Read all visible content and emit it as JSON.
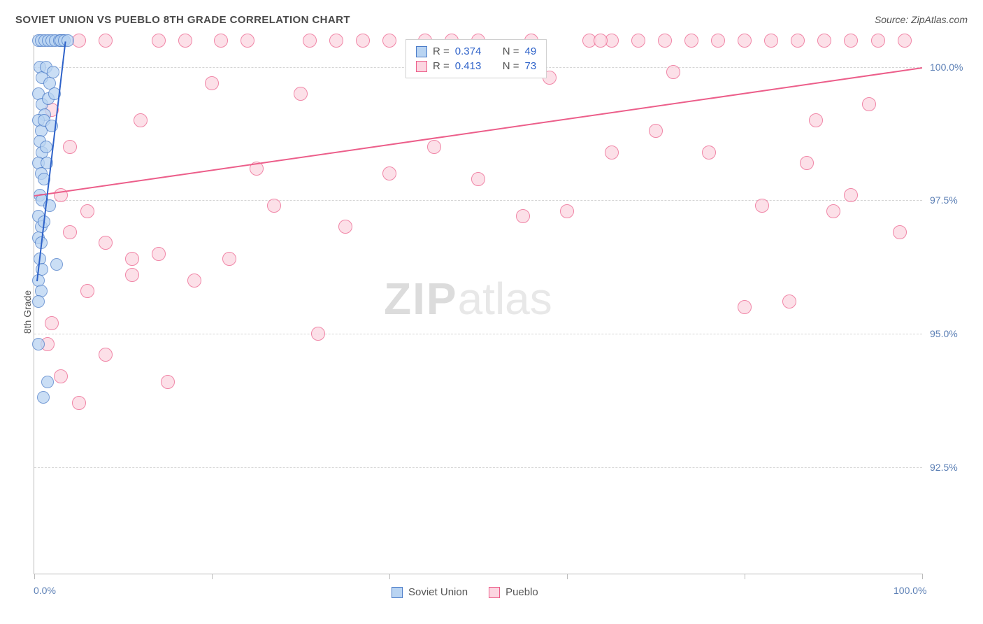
{
  "title": "SOVIET UNION VS PUEBLO 8TH GRADE CORRELATION CHART",
  "source": "Source: ZipAtlas.com",
  "y_axis_label": "8th Grade",
  "watermark_zip": "ZIP",
  "watermark_atlas": "atlas",
  "chart": {
    "type": "scatter",
    "xlim": [
      0,
      100
    ],
    "ylim": [
      90.5,
      100.6
    ],
    "x_ticks": [
      0,
      20,
      40,
      60,
      80,
      100
    ],
    "x_tick_labels": {
      "0": "0.0%",
      "100": "100.0%"
    },
    "y_gridlines": [
      92.5,
      95.0,
      97.5,
      100.0
    ],
    "y_tick_labels": [
      "92.5%",
      "95.0%",
      "97.5%",
      "100.0%"
    ],
    "grid_color": "#d5d5d5",
    "axis_color": "#bbbbbb",
    "background_color": "#ffffff",
    "label_color": "#5b7fb5"
  },
  "series": {
    "soviet": {
      "label": "Soviet Union",
      "fill": "#b9d4f2",
      "stroke": "#4a7bc8",
      "marker_radius": 9,
      "R": "0.374",
      "N": "49",
      "trend": {
        "x1": 0.3,
        "y1": 96.0,
        "x2": 3.5,
        "y2": 100.5,
        "color": "#2e62c9",
        "width": 2
      },
      "points": [
        [
          0.5,
          100.5
        ],
        [
          0.8,
          100.5
        ],
        [
          1.2,
          100.5
        ],
        [
          1.6,
          100.5
        ],
        [
          2.0,
          100.5
        ],
        [
          2.4,
          100.5
        ],
        [
          2.8,
          100.5
        ],
        [
          3.2,
          100.5
        ],
        [
          0.6,
          100.0
        ],
        [
          0.9,
          99.8
        ],
        [
          1.3,
          100.0
        ],
        [
          1.7,
          99.7
        ],
        [
          2.1,
          99.9
        ],
        [
          0.5,
          99.5
        ],
        [
          0.9,
          99.3
        ],
        [
          1.2,
          99.1
        ],
        [
          1.6,
          99.4
        ],
        [
          0.5,
          99.0
        ],
        [
          0.8,
          98.8
        ],
        [
          1.1,
          99.0
        ],
        [
          0.6,
          98.6
        ],
        [
          0.9,
          98.4
        ],
        [
          1.3,
          98.5
        ],
        [
          0.5,
          98.2
        ],
        [
          0.8,
          98.0
        ],
        [
          1.1,
          97.9
        ],
        [
          0.6,
          97.6
        ],
        [
          0.9,
          97.5
        ],
        [
          0.5,
          97.2
        ],
        [
          0.8,
          97.0
        ],
        [
          1.1,
          97.1
        ],
        [
          0.5,
          96.8
        ],
        [
          0.8,
          96.7
        ],
        [
          0.6,
          96.4
        ],
        [
          0.9,
          96.2
        ],
        [
          0.5,
          96.0
        ],
        [
          0.8,
          95.8
        ],
        [
          0.5,
          95.6
        ],
        [
          2.5,
          96.3
        ],
        [
          0.5,
          94.8
        ],
        [
          1.5,
          94.1
        ],
        [
          1.0,
          93.8
        ],
        [
          3.0,
          100.5
        ],
        [
          3.4,
          100.5
        ],
        [
          3.8,
          100.5
        ],
        [
          1.4,
          98.2
        ],
        [
          1.7,
          97.4
        ],
        [
          2.0,
          98.9
        ],
        [
          2.3,
          99.5
        ]
      ]
    },
    "pueblo": {
      "label": "Pueblo",
      "fill": "#fcd6e1",
      "stroke": "#ec5e8a",
      "marker_radius": 10,
      "R": "0.413",
      "N": "73",
      "trend": {
        "x1": 0,
        "y1": 97.6,
        "x2": 100,
        "y2": 100.0,
        "color": "#ec5e8a",
        "width": 2
      },
      "points": [
        [
          5,
          100.5
        ],
        [
          8,
          100.5
        ],
        [
          14,
          100.5
        ],
        [
          17,
          100.5
        ],
        [
          21,
          100.5
        ],
        [
          24,
          100.5
        ],
        [
          31,
          100.5
        ],
        [
          34,
          100.5
        ],
        [
          37,
          100.5
        ],
        [
          40,
          100.5
        ],
        [
          50,
          100.5
        ],
        [
          56,
          100.5
        ],
        [
          65,
          100.5
        ],
        [
          68,
          100.5
        ],
        [
          71,
          100.5
        ],
        [
          74,
          100.5
        ],
        [
          77,
          100.5
        ],
        [
          80,
          100.5
        ],
        [
          83,
          100.5
        ],
        [
          86,
          100.5
        ],
        [
          89,
          100.5
        ],
        [
          92,
          100.5
        ],
        [
          95,
          100.5
        ],
        [
          98,
          100.5
        ],
        [
          72,
          99.9
        ],
        [
          48,
          100.0
        ],
        [
          62.5,
          100.5
        ],
        [
          63.8,
          100.5
        ],
        [
          12,
          99.0
        ],
        [
          25,
          98.1
        ],
        [
          65,
          98.4
        ],
        [
          76,
          98.4
        ],
        [
          87,
          98.2
        ],
        [
          40,
          98.0
        ],
        [
          90,
          97.3
        ],
        [
          92,
          97.6
        ],
        [
          3,
          97.6
        ],
        [
          6,
          97.3
        ],
        [
          60,
          97.3
        ],
        [
          82,
          97.4
        ],
        [
          4,
          96.9
        ],
        [
          8,
          96.7
        ],
        [
          11,
          96.4
        ],
        [
          14,
          96.5
        ],
        [
          22,
          96.4
        ],
        [
          11,
          96.1
        ],
        [
          18,
          96.0
        ],
        [
          6,
          95.8
        ],
        [
          1.5,
          94.8
        ],
        [
          8,
          94.6
        ],
        [
          32,
          95.0
        ],
        [
          15,
          94.1
        ],
        [
          5,
          93.7
        ],
        [
          97.5,
          96.9
        ],
        [
          80,
          95.5
        ],
        [
          27,
          97.4
        ],
        [
          35,
          97.0
        ],
        [
          55,
          97.2
        ],
        [
          45,
          98.5
        ],
        [
          50,
          97.9
        ],
        [
          70,
          98.8
        ],
        [
          30,
          99.5
        ],
        [
          20,
          99.7
        ],
        [
          58,
          99.8
        ],
        [
          88,
          99.0
        ],
        [
          94,
          99.3
        ],
        [
          85,
          95.6
        ],
        [
          2,
          99.2
        ],
        [
          4,
          98.5
        ],
        [
          2,
          95.2
        ],
        [
          3,
          94.2
        ],
        [
          44,
          100.5
        ],
        [
          47,
          100.5
        ]
      ]
    }
  },
  "stats_box": {
    "rows": [
      {
        "swatch_fill": "#b9d4f2",
        "swatch_stroke": "#4a7bc8",
        "R_label": "R =",
        "R_val": "0.374",
        "N_label": "N =",
        "N_val": "49"
      },
      {
        "swatch_fill": "#fcd6e1",
        "swatch_stroke": "#ec5e8a",
        "R_label": "R =",
        "R_val": "0.413",
        "N_label": "N =",
        "N_val": "73"
      }
    ]
  },
  "bottom_legend": [
    {
      "fill": "#b9d4f2",
      "stroke": "#4a7bc8",
      "label": "Soviet Union"
    },
    {
      "fill": "#fcd6e1",
      "stroke": "#ec5e8a",
      "label": "Pueblo"
    }
  ]
}
